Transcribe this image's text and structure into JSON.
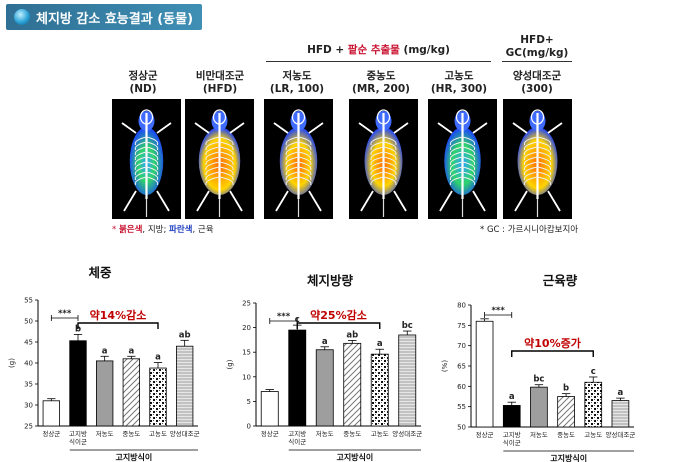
{
  "banner": {
    "title": "체지방 감소 효능결과 (동물)"
  },
  "header": {
    "hfd_prefix": "HFD + ",
    "hfd_extract": "팥순 추출물",
    "hfd_unit": " (mg/kg)",
    "gc_line1": "HFD+",
    "gc_line2": "GC(mg/kg)"
  },
  "groups": [
    {
      "name": "정상군",
      "code": "(ND)"
    },
    {
      "name": "비만대조군",
      "code": "(HFD)"
    },
    {
      "name": "저농도",
      "code": "(LR, 100)"
    },
    {
      "name": "중농도",
      "code": "(MR, 200)"
    },
    {
      "name": "고농도",
      "code": "(HR, 300)"
    },
    {
      "name": "양성대조군",
      "code": "(300)"
    }
  ],
  "legend": {
    "red_label": "붉은색",
    "red_text": ", 지방; ",
    "blue_label": "파란색",
    "blue_text": ", 근육",
    "gc_note": "* GC : 가르시니아캄보지아"
  },
  "chart_data": [
    {
      "type": "bar",
      "title": "체중",
      "ylabel": "(g)",
      "ylim": [
        25,
        55
      ],
      "yticks": [
        25,
        30,
        35,
        40,
        45,
        50,
        55
      ],
      "categories": [
        "정상군",
        "고지방\n식이군",
        "저농도",
        "중농도",
        "고농도",
        "양성대조군"
      ],
      "values": [
        31.0,
        45.3,
        40.5,
        41.0,
        38.8,
        44.0
      ],
      "errors": [
        0.5,
        1.5,
        1.1,
        0.6,
        1.3,
        1.4
      ],
      "sig_letters": [
        "",
        "b",
        "a",
        "a",
        "a",
        "ab"
      ],
      "sig_bracket": "***",
      "annotation": "약14%감소",
      "group_label": "고지방식이"
    },
    {
      "type": "bar",
      "title": "체지방량",
      "ylabel": "(g)",
      "ylim": [
        0,
        25
      ],
      "yticks": [
        0,
        5,
        10,
        15,
        20,
        25
      ],
      "categories": [
        "정상군",
        "고지방\n식이군",
        "저농도",
        "중농도",
        "고농도",
        "양성대조군"
      ],
      "values": [
        7.0,
        19.5,
        15.5,
        16.8,
        14.6,
        18.5
      ],
      "errors": [
        0.4,
        1.0,
        0.6,
        0.6,
        1.0,
        0.8
      ],
      "sig_letters": [
        "",
        "c",
        "a",
        "ab",
        "a",
        "bc"
      ],
      "sig_bracket": "***",
      "annotation": "약25%감소",
      "group_label": "고지방식이"
    },
    {
      "type": "bar",
      "title": "근육량",
      "ylabel": "(%)",
      "ylim": [
        50,
        80
      ],
      "yticks": [
        50,
        55,
        60,
        65,
        70,
        75,
        80
      ],
      "categories": [
        "정상군",
        "고지방\n식이군",
        "저농도",
        "중농도",
        "고농도",
        "양성대조군"
      ],
      "values": [
        76.0,
        55.3,
        59.8,
        57.5,
        61.0,
        56.5
      ],
      "errors": [
        0.6,
        0.8,
        0.6,
        0.7,
        1.3,
        0.6
      ],
      "sig_letters": [
        "",
        "a",
        "bc",
        "b",
        "c",
        "a"
      ],
      "sig_bracket": "***",
      "annotation": "약10%증가",
      "group_label": "고지방식이"
    }
  ]
}
